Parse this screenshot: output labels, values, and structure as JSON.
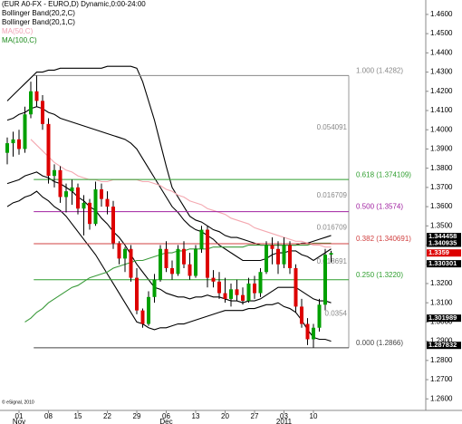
{
  "chart_data": {
    "type": "candlestick",
    "title": "(EUR A0-FX - EURO,D) Dynamic,0:00-24:00",
    "legend": [
      {
        "text": "Bollinger Band(20,2,C)",
        "color": "#000000"
      },
      {
        "text": "Bollinger Band(20,1,C)",
        "color": "#000000"
      },
      {
        "text": "MA(50,C)",
        "color": "#f0a0b4"
      },
      {
        "text": "MA(100,C)",
        "color": "#1a8a1a"
      }
    ],
    "copyright": "© eSignal, 2010",
    "categories": [
      null,
      null,
      "01",
      null,
      null,
      null,
      null,
      "08",
      null,
      null,
      null,
      null,
      "15",
      null,
      null,
      null,
      null,
      "22",
      null,
      null,
      null,
      null,
      "29",
      null,
      null,
      null,
      null,
      "06",
      null,
      null,
      null,
      null,
      "13",
      null,
      null,
      null,
      null,
      "20",
      null,
      null,
      null,
      null,
      "27",
      null,
      null,
      null,
      null,
      "03",
      null,
      null,
      null,
      null,
      "10",
      null,
      null,
      null
    ],
    "months": [
      null,
      null,
      "Nov",
      null,
      null,
      null,
      null,
      null,
      null,
      null,
      null,
      null,
      null,
      null,
      null,
      null,
      null,
      null,
      null,
      null,
      null,
      null,
      null,
      null,
      null,
      null,
      null,
      "Dec",
      null,
      null,
      null,
      null,
      null,
      null,
      null,
      null,
      null,
      null,
      null,
      null,
      null,
      null,
      null,
      null,
      null,
      null,
      null,
      "2011",
      null,
      null,
      null,
      null,
      null,
      null,
      null,
      null
    ],
    "open": [
      1.388,
      1.393,
      1.395,
      1.39,
      1.408,
      1.42,
      1.415,
      1.403,
      1.376,
      1.379,
      1.365,
      1.368,
      1.37,
      1.359,
      1.362,
      1.351,
      1.369,
      1.364,
      1.36,
      1.341,
      1.333,
      1.338,
      1.323,
      1.306,
      1.299,
      1.313,
      1.322,
      1.338,
      1.328,
      1.325,
      1.338,
      1.33,
      1.324,
      1.338,
      1.348,
      1.323,
      1.321,
      1.315,
      1.312,
      1.317,
      1.314,
      1.311,
      1.32,
      1.315,
      1.326,
      1.34,
      1.338,
      1.33,
      1.34,
      1.328,
      1.308,
      1.299,
      1.291,
      1.297,
      1.309,
      1.335
    ],
    "high": [
      1.396,
      1.399,
      1.4,
      1.412,
      1.425,
      1.4282,
      1.418,
      1.406,
      1.382,
      1.381,
      1.372,
      1.374,
      1.372,
      1.366,
      1.364,
      1.373,
      1.372,
      1.368,
      1.363,
      1.342,
      1.339,
      1.34,
      1.328,
      1.307,
      1.316,
      1.325,
      1.34,
      1.342,
      1.332,
      1.34,
      1.342,
      1.336,
      1.34,
      1.35,
      1.35,
      1.327,
      1.326,
      1.323,
      1.32,
      1.322,
      1.318,
      1.323,
      1.324,
      1.328,
      1.342,
      1.344,
      1.342,
      1.344,
      1.342,
      1.33,
      1.312,
      1.302,
      1.299,
      1.312,
      1.338,
      1.337
    ],
    "low": [
      1.382,
      1.386,
      1.387,
      1.388,
      1.406,
      1.412,
      1.4,
      1.372,
      1.37,
      1.362,
      1.357,
      1.361,
      1.356,
      1.345,
      1.348,
      1.35,
      1.36,
      1.356,
      1.338,
      1.33,
      1.326,
      1.321,
      1.304,
      1.297,
      1.298,
      1.31,
      1.321,
      1.326,
      1.322,
      1.324,
      1.328,
      1.322,
      1.323,
      1.336,
      1.318,
      1.318,
      1.312,
      1.31,
      1.308,
      1.311,
      1.309,
      1.31,
      1.312,
      1.313,
      1.325,
      1.33,
      1.325,
      1.328,
      1.325,
      1.305,
      1.297,
      1.288,
      1.2866,
      1.295,
      1.306,
      1.331
    ],
    "close": [
      1.393,
      1.395,
      1.39,
      1.408,
      1.42,
      1.415,
      1.403,
      1.376,
      1.379,
      1.365,
      1.368,
      1.37,
      1.359,
      1.362,
      1.351,
      1.369,
      1.364,
      1.36,
      1.341,
      1.333,
      1.338,
      1.323,
      1.306,
      1.299,
      1.313,
      1.322,
      1.338,
      1.328,
      1.325,
      1.338,
      1.33,
      1.324,
      1.338,
      1.348,
      1.323,
      1.321,
      1.315,
      1.312,
      1.317,
      1.314,
      1.311,
      1.32,
      1.315,
      1.326,
      1.34,
      1.338,
      1.33,
      1.34,
      1.328,
      1.308,
      1.299,
      1.291,
      1.297,
      1.309,
      1.335,
      1.3359
    ],
    "up_color": "#00a000",
    "down_color": "#dd0000",
    "overlays": [
      {
        "color": "#000000",
        "values": [
          1.415,
          1.418,
          1.421,
          1.424,
          1.427,
          1.43,
          1.43,
          1.431,
          1.431,
          1.432,
          1.432,
          1.432,
          1.432,
          1.432,
          1.432,
          1.432,
          1.432,
          1.433,
          1.433,
          1.433,
          1.433,
          1.433,
          1.432,
          1.425,
          1.415,
          1.405,
          1.393,
          1.381,
          1.37,
          1.365,
          1.36,
          1.355,
          1.353,
          1.352,
          1.35,
          1.348,
          1.347,
          1.345,
          1.344,
          1.344,
          1.343,
          1.342,
          1.341,
          1.34,
          1.34,
          1.34,
          1.34,
          1.34,
          1.34,
          1.34,
          1.341,
          1.341,
          1.342,
          1.343,
          1.344,
          1.345
        ]
      },
      {
        "color": "#000000",
        "values": [
          1.405,
          1.406,
          1.408,
          1.409,
          1.411,
          1.412,
          1.411,
          1.409,
          1.408,
          1.406,
          1.405,
          1.404,
          1.403,
          1.402,
          1.401,
          1.4,
          1.399,
          1.398,
          1.397,
          1.396,
          1.395,
          1.393,
          1.39,
          1.385,
          1.38,
          1.375,
          1.37,
          1.365,
          1.36,
          1.357,
          1.353,
          1.35,
          1.348,
          1.347,
          1.345,
          1.343,
          1.34,
          1.338,
          1.336,
          1.334,
          1.332,
          1.332,
          1.332,
          1.332,
          1.333,
          1.335,
          1.336,
          1.336,
          1.337,
          1.337,
          1.335,
          1.334,
          1.332,
          1.334,
          1.336,
          1.338
        ]
      },
      {
        "color": "#000000",
        "values": [
          1.372,
          1.373,
          1.374,
          1.376,
          1.377,
          1.378,
          1.376,
          1.375,
          1.373,
          1.372,
          1.37,
          1.368,
          1.365,
          1.363,
          1.36,
          1.358,
          1.354,
          1.351,
          1.347,
          1.344,
          1.34,
          1.335,
          1.33,
          1.326,
          1.322,
          1.318,
          1.317,
          1.315,
          1.314,
          1.313,
          1.313,
          1.312,
          1.313,
          1.313,
          1.314,
          1.313,
          1.313,
          1.312,
          1.311,
          1.311,
          1.31,
          1.311,
          1.311,
          1.312,
          1.314,
          1.316,
          1.318,
          1.318,
          1.318,
          1.318,
          1.316,
          1.314,
          1.312,
          1.311,
          1.311,
          1.31
        ]
      },
      {
        "color": "#000000",
        "values": [
          1.36,
          1.362,
          1.363,
          1.365,
          1.366,
          1.368,
          1.365,
          1.363,
          1.36,
          1.358,
          1.355,
          1.351,
          1.347,
          1.343,
          1.339,
          1.335,
          1.33,
          1.325,
          1.32,
          1.315,
          1.31,
          1.305,
          1.3,
          1.299,
          1.297,
          1.296,
          1.297,
          1.297,
          1.298,
          1.299,
          1.299,
          1.3,
          1.301,
          1.302,
          1.303,
          1.304,
          1.305,
          1.306,
          1.306,
          1.306,
          1.306,
          1.307,
          1.307,
          1.308,
          1.309,
          1.309,
          1.31,
          1.308,
          1.307,
          1.305,
          1.301,
          1.296,
          1.292,
          1.291,
          1.291,
          1.29
        ]
      },
      {
        "color": "#f4a8b0",
        "values": [
          null,
          null,
          null,
          null,
          1.395,
          1.392,
          1.389,
          1.386,
          1.383,
          1.381,
          1.379,
          1.378,
          1.376,
          1.375,
          1.374,
          1.374,
          1.373,
          1.373,
          1.374,
          1.374,
          1.374,
          1.374,
          1.374,
          1.373,
          1.373,
          1.372,
          1.371,
          1.369,
          1.368,
          1.366,
          1.365,
          1.363,
          1.362,
          1.361,
          1.359,
          1.358,
          1.357,
          1.356,
          1.354,
          1.353,
          1.352,
          1.351,
          1.349,
          1.348,
          1.347,
          1.346,
          1.345,
          1.344,
          1.343,
          1.342,
          1.342,
          1.341,
          1.34,
          1.34,
          1.339,
          1.339
        ]
      },
      {
        "color": "#3a9a3a",
        "values": [
          null,
          null,
          null,
          1.3,
          1.302,
          1.305,
          1.307,
          1.31,
          1.312,
          1.314,
          1.316,
          1.318,
          1.319,
          1.321,
          1.323,
          1.324,
          1.325,
          1.326,
          1.328,
          1.329,
          1.33,
          1.331,
          1.332,
          1.332,
          1.333,
          1.334,
          1.335,
          1.336,
          1.336,
          1.337,
          1.337,
          1.338,
          1.338,
          1.338,
          1.338,
          1.339,
          1.339,
          1.339,
          1.339,
          1.339,
          1.339,
          1.34,
          1.34,
          1.34,
          1.34,
          1.34,
          1.34,
          1.34,
          1.34,
          1.34,
          1.34,
          1.34,
          1.341,
          1.341,
          1.341,
          1.341
        ]
      }
    ],
    "fib_levels": [
      {
        "label": "1.000 (1.4282)",
        "value": 1.4282,
        "color": "#888888"
      },
      {
        "label": "0.618 (1.374109)",
        "value": 1.374109,
        "color": "#2e9e2e"
      },
      {
        "label": "0.500 (1.3574)",
        "value": 1.3574,
        "color": "#a020a0"
      },
      {
        "label": "0.382 (1.340691)",
        "value": 1.340691,
        "color": "#d04040"
      },
      {
        "label": "0.250 (1.3220)",
        "value": 1.322,
        "color": "#2e9e2e"
      },
      {
        "label": "0.000 (1.2866)",
        "value": 1.2866,
        "color": "#444444"
      }
    ],
    "fib_differences": [
      0.054091,
      0.016709,
      0.016709,
      0.018691,
      0.0354
    ],
    "price_labels": [
      {
        "value": 1.344458,
        "color": "#000000"
      },
      {
        "value": 1.340935,
        "color": "#000000"
      },
      {
        "value": 1.3359,
        "color": "#dd0000"
      },
      {
        "value": 1.330301,
        "color": "#000000"
      },
      {
        "value": 1.301989,
        "color": "#000000"
      },
      {
        "value": 1.287832,
        "color": "#000000"
      }
    ],
    "ylim": [
      1.254,
      1.4675
    ],
    "yticks": [
      {
        "value": 1.26,
        "label": "1.2600"
      },
      {
        "value": 1.27,
        "label": "1.2700"
      },
      {
        "value": 1.28,
        "label": "1.2800"
      },
      {
        "value": 1.29,
        "label": "1.2900"
      },
      {
        "value": 1.3,
        "label": "1.3000"
      },
      {
        "value": 1.31,
        "label": "1.3100"
      },
      {
        "value": 1.32,
        "label": "1.3200"
      },
      {
        "value": 1.33,
        "label": "1.3300"
      },
      {
        "value": 1.34,
        "label": "1.3400"
      },
      {
        "value": 1.35,
        "label": "1.3500"
      },
      {
        "value": 1.36,
        "label": "1.3600"
      },
      {
        "value": 1.37,
        "label": "1.3700"
      },
      {
        "value": 1.38,
        "label": "1.3800"
      },
      {
        "value": 1.39,
        "label": "1.3900"
      },
      {
        "value": 1.4,
        "label": "1.4000"
      },
      {
        "value": 1.41,
        "label": "1.4100"
      },
      {
        "value": 1.42,
        "label": "1.4200"
      },
      {
        "value": 1.43,
        "label": "1.4300"
      },
      {
        "value": 1.44,
        "label": "1.4400"
      },
      {
        "value": 1.45,
        "label": "1.4500"
      },
      {
        "value": 1.46,
        "label": "1.4600"
      }
    ]
  }
}
